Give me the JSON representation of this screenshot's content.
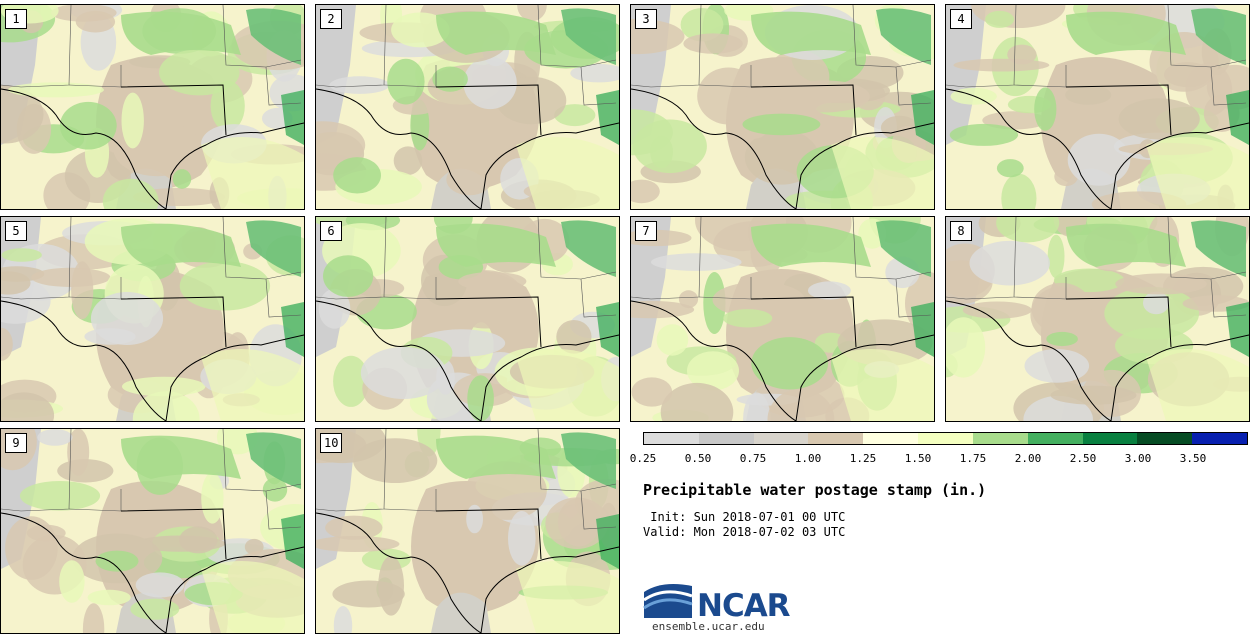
{
  "members": [
    "1",
    "2",
    "3",
    "4",
    "5",
    "6",
    "7",
    "8",
    "9",
    "10"
  ],
  "colorbar": {
    "colors": [
      "#dcdcdc",
      "#c8c8c8",
      "#d8d4cc",
      "#d8c8b0",
      "#ffffe0",
      "#f4ffc0",
      "#a8dc8c",
      "#44b060",
      "#088040",
      "#064c24",
      "#0820b0"
    ],
    "ticks": [
      "0.25",
      "0.50",
      "0.75",
      "1.00",
      "1.25",
      "1.50",
      "1.75",
      "2.00",
      "2.50",
      "3.00",
      "3.50"
    ]
  },
  "title": "Precipitable water postage stamp (in.)",
  "init": " Init: Sun 2018-07-01 00 UTC",
  "valid": "Valid: Mon 2018-07-02 03 UTC",
  "logo": {
    "text": "NCAR",
    "site": "ensemble.ucar.edu"
  }
}
